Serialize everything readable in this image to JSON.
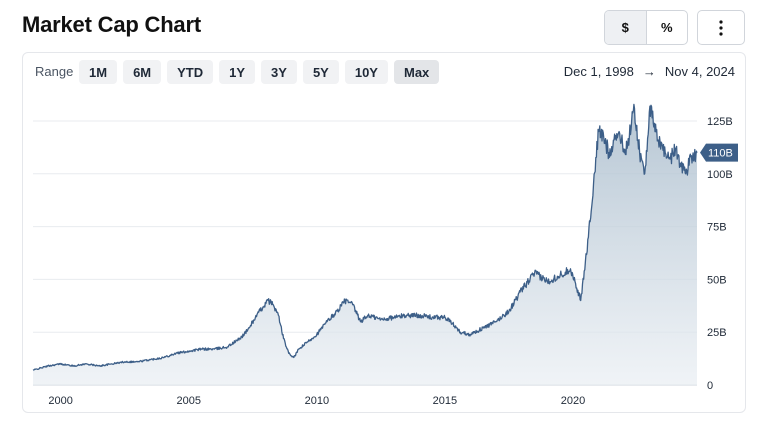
{
  "header": {
    "title": "Market Cap Chart",
    "unit_dollar": "$",
    "unit_percent": "%",
    "menu_icon": "more-vertical-icon"
  },
  "range": {
    "label": "Range",
    "buttons": [
      "1M",
      "6M",
      "YTD",
      "1Y",
      "3Y",
      "5Y",
      "10Y",
      "Max"
    ],
    "active": "Max",
    "start_date": "Dec 1, 1998",
    "arrow": "→",
    "end_date": "Nov 4, 2024"
  },
  "chart_data": {
    "type": "area",
    "title": "",
    "xlabel": "",
    "ylabel": "",
    "x_ticks": [
      "2000",
      "2005",
      "2010",
      "2015",
      "2020"
    ],
    "y_ticks": [
      "0",
      "25B",
      "50B",
      "75B",
      "100B",
      "125B"
    ],
    "xlim": [
      1998.92,
      2024.84
    ],
    "ylim": [
      0,
      125
    ],
    "grid": true,
    "last_value_label": "110B",
    "last_value": 110,
    "line_color": "#3d5f88",
    "x": [
      1998.92,
      1999.5,
      2000.0,
      2000.5,
      2001.0,
      2001.5,
      2002.0,
      2002.5,
      2003.0,
      2003.5,
      2004.0,
      2004.5,
      2005.0,
      2005.5,
      2006.0,
      2006.5,
      2007.0,
      2007.3,
      2007.6,
      2007.9,
      2008.1,
      2008.3,
      2008.5,
      2008.7,
      2008.9,
      2009.1,
      2009.3,
      2009.6,
      2010.0,
      2010.4,
      2010.8,
      2011.1,
      2011.4,
      2011.7,
      2012.0,
      2012.5,
      2013.0,
      2013.5,
      2014.0,
      2014.5,
      2015.0,
      2015.3,
      2015.6,
      2016.0,
      2016.5,
      2017.0,
      2017.5,
      2018.0,
      2018.5,
      2019.0,
      2019.5,
      2019.9,
      2020.1,
      2020.3,
      2020.6,
      2020.8,
      2021.0,
      2021.2,
      2021.4,
      2021.6,
      2021.8,
      2022.0,
      2022.2,
      2022.4,
      2022.6,
      2022.8,
      2023.0,
      2023.2,
      2023.4,
      2023.6,
      2023.8,
      2024.0,
      2024.2,
      2024.4,
      2024.6,
      2024.84
    ],
    "values": [
      7,
      9,
      10,
      9,
      10,
      9,
      10,
      11,
      11,
      12,
      13,
      15,
      16,
      17,
      17,
      18,
      22,
      26,
      32,
      37,
      40,
      38,
      33,
      22,
      15,
      13,
      17,
      20,
      24,
      30,
      35,
      40,
      38,
      30,
      33,
      31,
      32,
      33,
      33,
      32,
      32,
      29,
      25,
      24,
      27,
      30,
      35,
      45,
      53,
      49,
      52,
      55,
      48,
      40,
      70,
      95,
      120,
      117,
      110,
      116,
      120,
      110,
      118,
      131,
      110,
      100,
      132,
      120,
      115,
      110,
      107,
      112,
      105,
      100,
      108,
      110
    ]
  }
}
